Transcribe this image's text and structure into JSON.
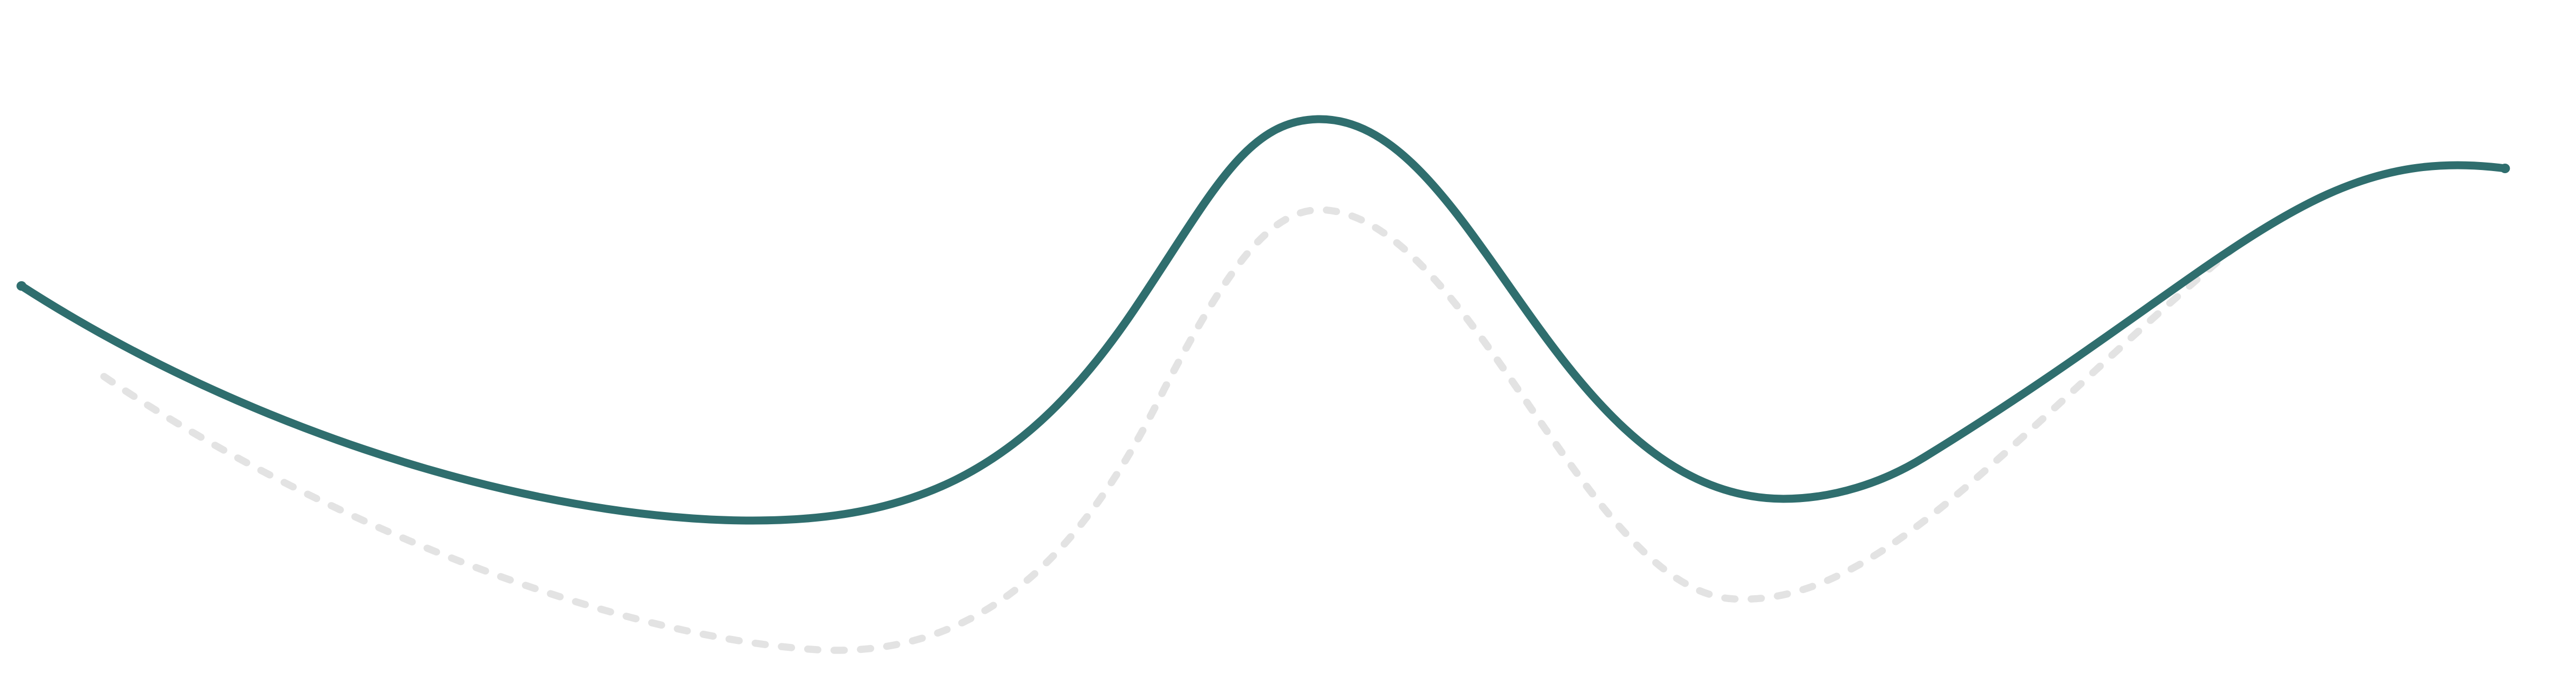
{
  "colors": {
    "background": "#ffffff",
    "primary_curve": "#2f6e6e",
    "dashed_curve": "#e3e3e3"
  }
}
